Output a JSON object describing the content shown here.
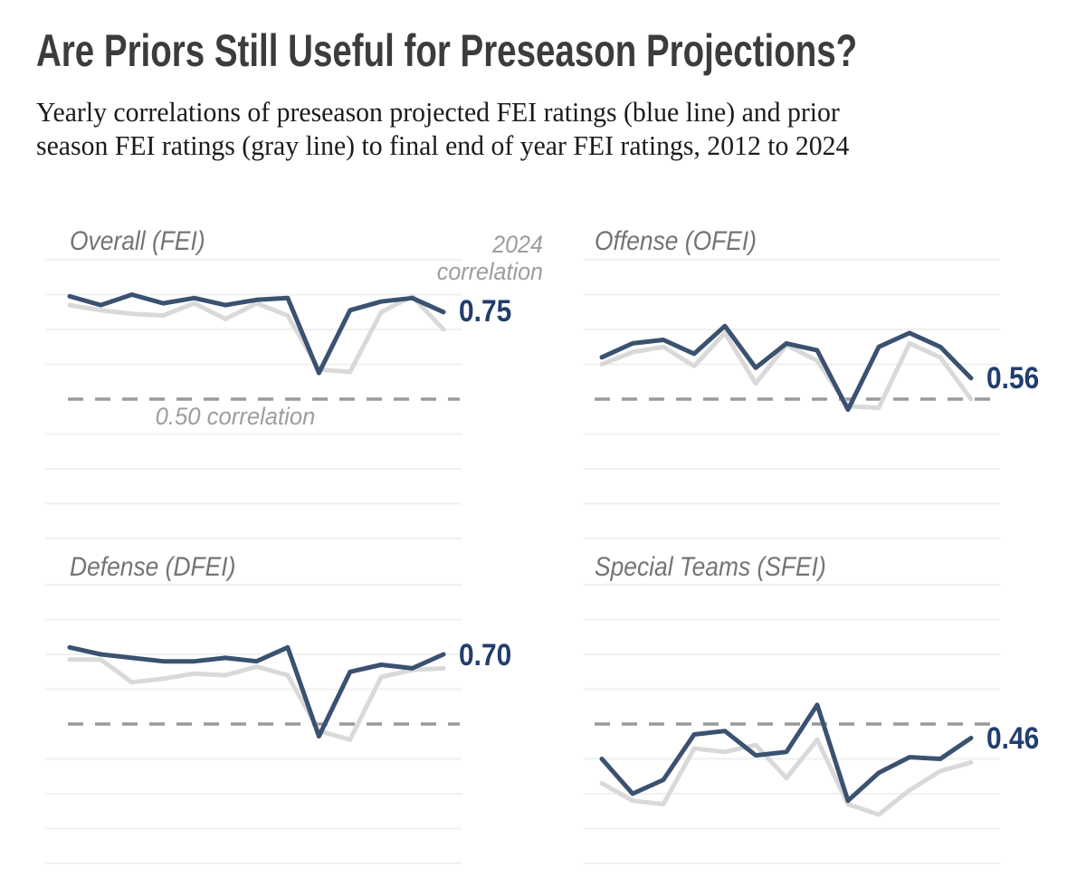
{
  "header": {
    "title": "Are Priors Still Useful for Preseason Projections?",
    "subtitle_line1": "Yearly correlations of preseason projected FEI ratings (blue line) and prior",
    "subtitle_line2": "season FEI ratings (gray line) to final end of year FEI ratings, 2012 to 2024"
  },
  "colors": {
    "projected_line": "#3b5170",
    "prior_line": "#d9d9d9",
    "value_label": "#223e6d",
    "reference_dash": "#999999",
    "gridline": "#f0f0f0",
    "title_text": "#3c3c3c",
    "panel_title_text": "#747474",
    "annotation_text": "#9e9e9e"
  },
  "chart_data": [
    {
      "type": "line",
      "key": "overall",
      "title": "Overall (FEI)",
      "x": [
        2012,
        2013,
        2014,
        2015,
        2016,
        2017,
        2018,
        2019,
        2020,
        2021,
        2022,
        2023,
        2024
      ],
      "series": [
        {
          "name": "Preseason projected FEI",
          "color_key": "projected_line",
          "values": [
            0.795,
            0.77,
            0.8,
            0.775,
            0.79,
            0.77,
            0.785,
            0.79,
            0.575,
            0.755,
            0.78,
            0.79,
            0.75
          ]
        },
        {
          "name": "Prior season FEI",
          "color_key": "prior_line",
          "values": [
            0.77,
            0.755,
            0.745,
            0.74,
            0.775,
            0.73,
            0.775,
            0.74,
            0.585,
            0.578,
            0.75,
            0.795,
            0.7
          ]
        }
      ],
      "end_label": "0.75",
      "reference_line": 0.5,
      "ylim": [
        0.05,
        0.95
      ],
      "grid": "horizontal every 0.1",
      "annotations": {
        "end_label_caption": "2024 correlation",
        "reference_label": "0.50 correlation"
      }
    },
    {
      "type": "line",
      "key": "offense",
      "title": "Offense (OFEI)",
      "x": [
        2012,
        2013,
        2014,
        2015,
        2016,
        2017,
        2018,
        2019,
        2020,
        2021,
        2022,
        2023,
        2024
      ],
      "series": [
        {
          "name": "Preseason projected OFEI",
          "color_key": "projected_line",
          "values": [
            0.62,
            0.66,
            0.67,
            0.63,
            0.71,
            0.59,
            0.66,
            0.64,
            0.47,
            0.65,
            0.69,
            0.65,
            0.56
          ]
        },
        {
          "name": "Prior season OFEI",
          "color_key": "prior_line",
          "values": [
            0.6,
            0.635,
            0.65,
            0.595,
            0.69,
            0.545,
            0.655,
            0.61,
            0.48,
            0.475,
            0.66,
            0.62,
            0.5
          ]
        }
      ],
      "end_label": "0.56",
      "reference_line": 0.5,
      "ylim": [
        0.05,
        0.95
      ],
      "grid": "horizontal every 0.1"
    },
    {
      "type": "line",
      "key": "defense",
      "title": "Defense (DFEI)",
      "x": [
        2012,
        2013,
        2014,
        2015,
        2016,
        2017,
        2018,
        2019,
        2020,
        2021,
        2022,
        2023,
        2024
      ],
      "series": [
        {
          "name": "Preseason projected DFEI",
          "color_key": "projected_line",
          "values": [
            0.72,
            0.7,
            0.69,
            0.68,
            0.68,
            0.69,
            0.68,
            0.72,
            0.465,
            0.65,
            0.67,
            0.66,
            0.7
          ]
        },
        {
          "name": "Prior season DFEI",
          "color_key": "prior_line",
          "values": [
            0.685,
            0.685,
            0.62,
            0.63,
            0.645,
            0.64,
            0.665,
            0.64,
            0.48,
            0.455,
            0.635,
            0.655,
            0.66
          ]
        }
      ],
      "end_label": "0.70",
      "reference_line": 0.5,
      "ylim": [
        0.05,
        0.95
      ],
      "grid": "horizontal every 0.1"
    },
    {
      "type": "line",
      "key": "special_teams",
      "title": "Special Teams (SFEI)",
      "x": [
        2012,
        2013,
        2014,
        2015,
        2016,
        2017,
        2018,
        2019,
        2020,
        2021,
        2022,
        2023,
        2024
      ],
      "series": [
        {
          "name": "Preseason projected SFEI",
          "color_key": "projected_line",
          "values": [
            0.4,
            0.3,
            0.34,
            0.47,
            0.48,
            0.41,
            0.42,
            0.555,
            0.28,
            0.36,
            0.405,
            0.4,
            0.46
          ]
        },
        {
          "name": "Prior season SFEI",
          "color_key": "prior_line",
          "values": [
            0.33,
            0.28,
            0.27,
            0.43,
            0.42,
            0.44,
            0.345,
            0.455,
            0.27,
            0.24,
            0.31,
            0.365,
            0.39
          ]
        }
      ],
      "end_label": "0.46",
      "reference_line": 0.5,
      "ylim": [
        0.05,
        0.95
      ],
      "grid": "horizontal every 0.1"
    }
  ]
}
